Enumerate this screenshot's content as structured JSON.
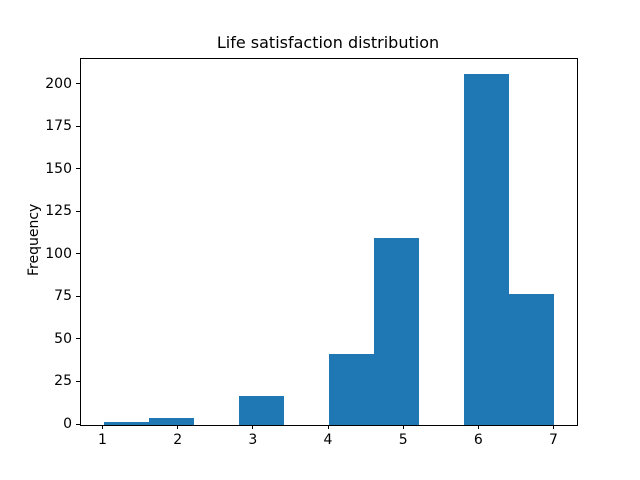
{
  "figure": {
    "background": "#ffffff"
  },
  "chart_data": {
    "type": "bar",
    "subtype": "histogram",
    "title": "Life satisfaction distribution",
    "xlabel": "",
    "ylabel": "Frequency",
    "bin_edges": [
      1.0,
      1.6,
      2.2,
      2.8,
      3.4,
      4.0,
      4.6,
      5.2,
      5.8,
      6.4,
      7.0
    ],
    "counts": [
      2,
      4,
      0,
      17,
      0,
      42,
      110,
      0,
      206,
      77
    ],
    "xticks": [
      1,
      2,
      3,
      4,
      5,
      6,
      7
    ],
    "yticks": [
      0,
      25,
      50,
      75,
      100,
      125,
      150,
      175,
      200
    ],
    "xlim": [
      0.7,
      7.3
    ],
    "ylim": [
      0,
      215
    ],
    "bar_color": "#1f77b4",
    "axis_color": "#000000",
    "text_color": "#000000",
    "grid": false,
    "legend": null
  }
}
